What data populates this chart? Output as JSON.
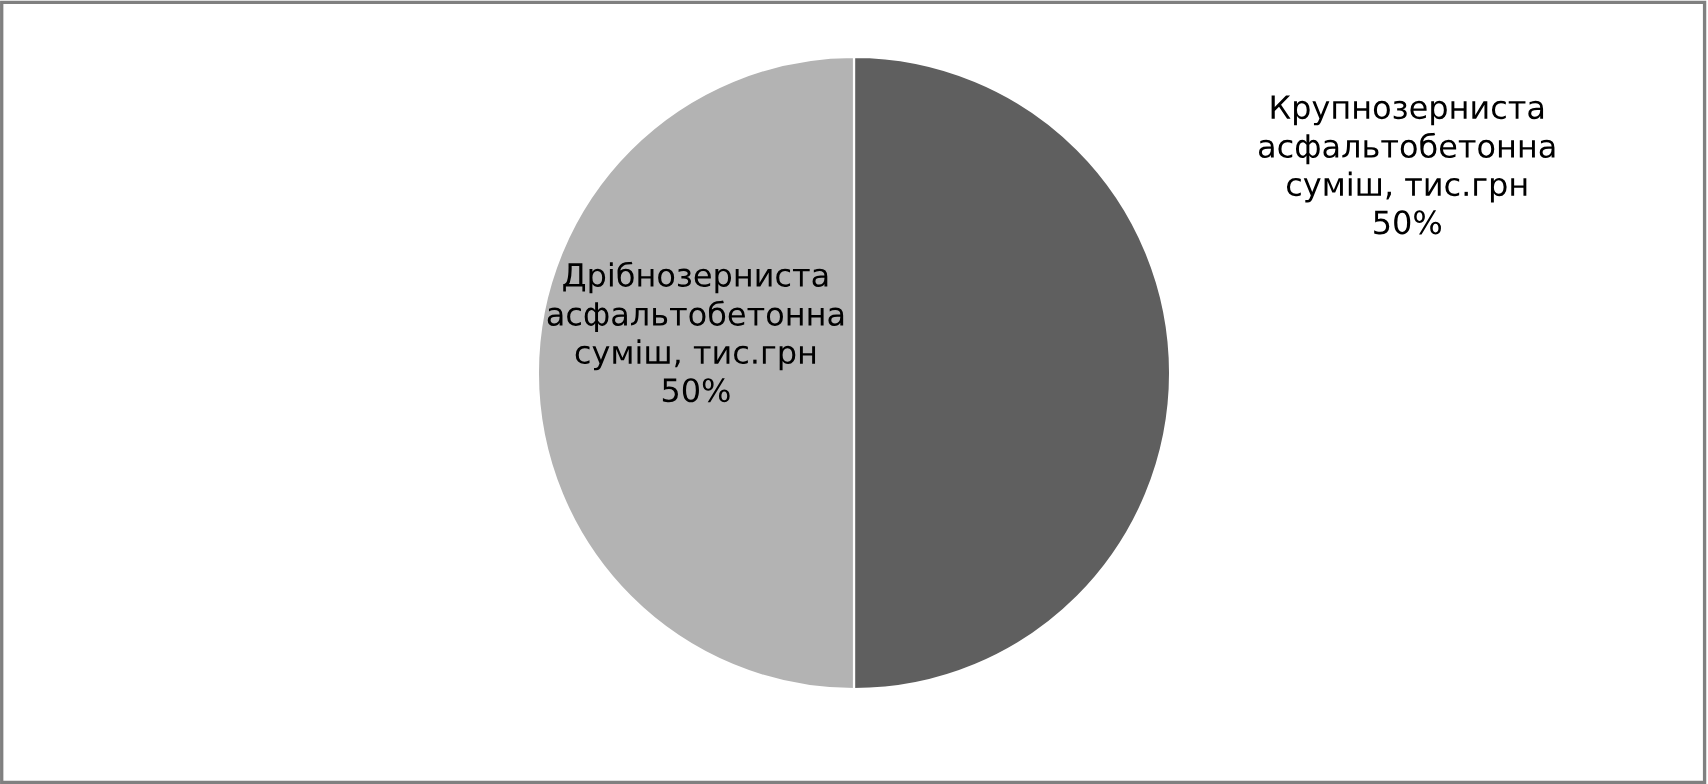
{
  "chart_data": {
    "type": "pie",
    "categories": [
      "Крупнозерниста\nасфальтобетонна\nсуміш, тис.грн",
      "Дрібнозерниста\nасфальтобетонна\nсуміш, тис.грн"
    ],
    "values": [
      50,
      50
    ],
    "value_labels": [
      "50%",
      "50%"
    ],
    "colors": [
      "#5f5f5f",
      "#b3b3b3"
    ],
    "legend": false
  }
}
